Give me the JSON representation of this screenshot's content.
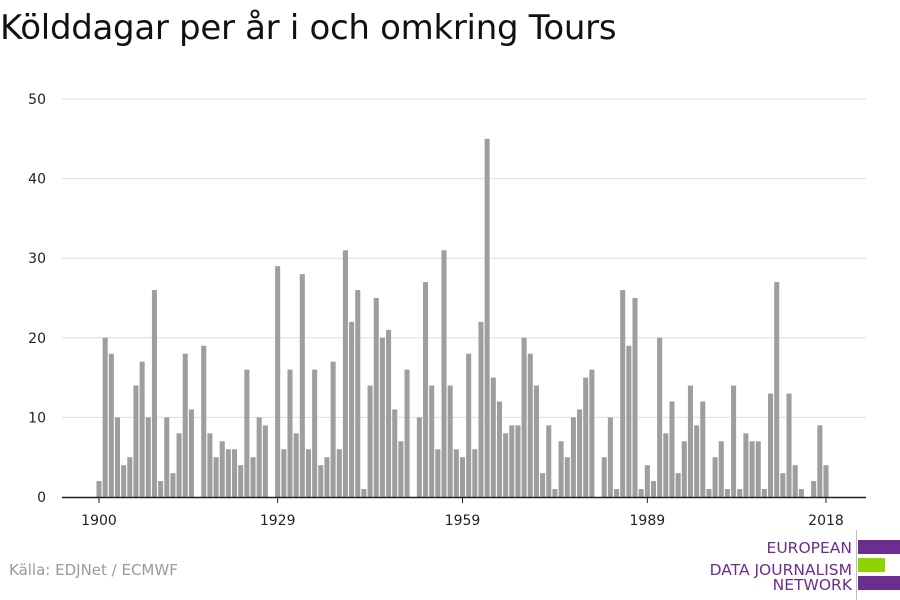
{
  "title": "Kölddagar per år i och omkring Tours",
  "source": "Källa: EDJNet / ECMWF",
  "logo": {
    "lines": [
      "EUROPEAN",
      "DATA JOURNALISM",
      "NETWORK"
    ],
    "text_color": "#6b2d8f",
    "bar_colors": [
      "#6b2d8f",
      "#8fd400",
      "#6b2d8f"
    ]
  },
  "chart_data": {
    "type": "bar",
    "title": "Kölddagar per år i och omkring Tours",
    "xlabel": "",
    "ylabel": "",
    "x_start": 1900,
    "x_end": 2018,
    "x_ticks": [
      1900,
      1929,
      1959,
      1989,
      2018
    ],
    "y_ticks": [
      0,
      10,
      20,
      30,
      40,
      50
    ],
    "ylim": [
      0,
      50
    ],
    "grid": true,
    "bar_color": "#9e9e9e",
    "values": [
      2,
      20,
      18,
      10,
      4,
      5,
      14,
      17,
      10,
      26,
      2,
      10,
      3,
      8,
      18,
      11,
      0,
      19,
      8,
      5,
      7,
      6,
      6,
      4,
      16,
      5,
      10,
      9,
      0,
      29,
      6,
      16,
      8,
      28,
      6,
      16,
      4,
      5,
      17,
      6,
      31,
      22,
      26,
      1,
      14,
      25,
      20,
      21,
      11,
      7,
      16,
      0,
      10,
      27,
      14,
      6,
      31,
      14,
      6,
      5,
      18,
      6,
      22,
      45,
      15,
      12,
      8,
      9,
      9,
      20,
      18,
      14,
      3,
      9,
      1,
      7,
      5,
      10,
      11,
      15,
      16,
      0,
      5,
      10,
      1,
      26,
      19,
      25,
      1,
      4,
      2,
      20,
      8,
      12,
      3,
      7,
      14,
      9,
      12,
      1,
      5,
      7,
      1,
      14,
      1,
      8,
      7,
      7,
      1,
      13,
      27,
      3,
      13,
      4,
      1,
      0,
      2,
      9,
      4
    ]
  }
}
